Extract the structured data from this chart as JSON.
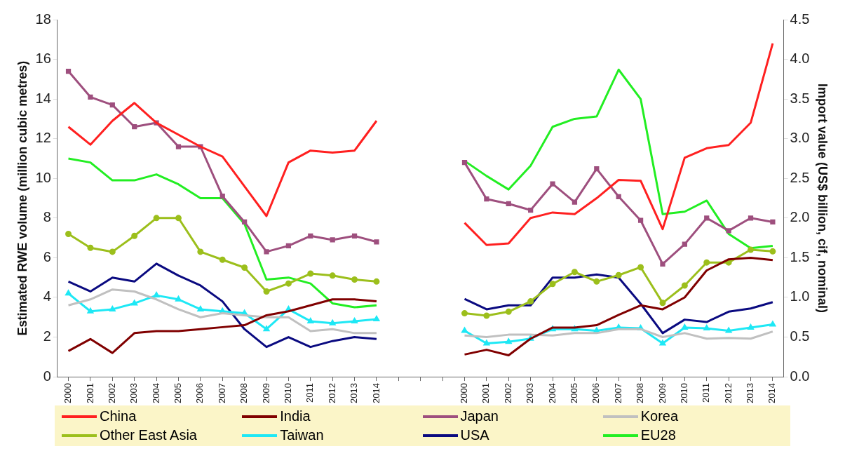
{
  "chart_data": {
    "type": "line",
    "ylabel": "Estimated RWE volume (million cubic metres)",
    "y2label": "Import value (US$ billion, cif, nominal)",
    "categories": [
      "2000",
      "2001",
      "2002",
      "2003",
      "2004",
      "2005",
      "2006",
      "2007",
      "2008",
      "2009",
      "2010",
      "2011",
      "2012",
      "2013",
      "2014",
      null,
      null,
      null,
      "2000",
      "2001",
      "2002",
      "2003",
      "2004",
      "2005",
      "2006",
      "2007",
      "2008",
      "2009",
      "2010",
      "2011",
      "2012",
      "2013",
      "2014"
    ],
    "ylim": [
      0,
      18
    ],
    "yticks": [
      0,
      2,
      4,
      6,
      8,
      10,
      12,
      14,
      16,
      18
    ],
    "y2lim": [
      0,
      4.5
    ],
    "y2ticks": [
      {
        "value": 0,
        "label": "0.0"
      },
      {
        "value": 0.5,
        "label": "0.5"
      },
      {
        "value": 1,
        "label": "1.0"
      },
      {
        "value": 1.5,
        "label": "1.5"
      },
      {
        "value": 2,
        "label": "2.0"
      },
      {
        "value": 2.5,
        "label": "2.5"
      },
      {
        "value": 3,
        "label": "3.0"
      },
      {
        "value": 3.5,
        "label": "3.5"
      },
      {
        "value": 4,
        "label": "4.0"
      },
      {
        "value": 4.5,
        "label": "4.5"
      }
    ],
    "grid": false,
    "legend": "bottom",
    "line_style": "solid",
    "series": [
      {
        "name": "China",
        "color": "#ff2020",
        "marker": "none",
        "values": [
          12.6,
          11.7,
          12.9,
          13.8,
          12.8,
          12.2,
          11.6,
          11.1,
          9.6,
          8.1,
          10.8,
          11.4,
          11.3,
          11.4,
          12.9,
          null,
          null,
          null,
          null,
          null,
          null,
          null,
          null,
          null,
          null,
          null,
          null,
          null,
          null,
          null,
          null,
          null,
          null
        ]
      },
      {
        "name": "India",
        "color": "#800000",
        "marker": "none",
        "values": [
          1.3,
          1.9,
          1.2,
          2.2,
          2.3,
          2.3,
          2.4,
          2.5,
          2.6,
          3.1,
          3.3,
          3.6,
          3.9,
          3.9,
          3.8,
          null,
          null,
          null,
          null,
          null,
          null,
          null,
          null,
          null,
          null,
          null,
          null,
          null,
          null,
          null,
          null,
          null,
          null
        ]
      },
      {
        "name": "Japan",
        "color": "#9e4f7e",
        "marker": "square",
        "values": [
          15.4,
          14.1,
          13.7,
          12.6,
          12.8,
          11.6,
          11.6,
          9.1,
          7.8,
          6.3,
          6.6,
          7.1,
          6.9,
          7.1,
          6.8,
          null,
          null,
          null,
          null,
          null,
          null,
          null,
          null,
          null,
          null,
          null,
          null,
          null,
          null,
          null,
          null,
          null,
          null
        ]
      },
      {
        "name": "Korea",
        "color": "#c0c0c0",
        "marker": "none",
        "values": [
          3.6,
          3.9,
          4.4,
          4.3,
          3.9,
          3.4,
          3.0,
          3.2,
          3.1,
          3.0,
          3.0,
          2.3,
          2.4,
          2.2,
          2.2,
          null,
          null,
          null,
          null,
          null,
          null,
          null,
          null,
          null,
          null,
          null,
          null,
          null,
          null,
          null,
          null,
          null,
          null
        ]
      },
      {
        "name": "Other East Asia",
        "color": "#9cbf1c",
        "marker": "circle",
        "values": [
          7.2,
          6.5,
          6.3,
          7.1,
          8.0,
          8.0,
          6.3,
          5.9,
          5.5,
          4.3,
          4.7,
          5.2,
          5.1,
          4.9,
          4.8,
          null,
          null,
          null,
          null,
          null,
          null,
          null,
          null,
          null,
          null,
          null,
          null,
          null,
          null,
          null,
          null,
          null,
          null
        ]
      },
      {
        "name": "Taiwan",
        "color": "#1ee8f5",
        "marker": "triangle",
        "values": [
          4.2,
          3.3,
          3.4,
          3.7,
          4.1,
          3.9,
          3.4,
          3.3,
          3.2,
          2.4,
          3.4,
          2.8,
          2.7,
          2.8,
          2.9,
          null,
          null,
          null,
          null,
          null,
          null,
          null,
          null,
          null,
          null,
          null,
          null,
          null,
          null,
          null,
          null,
          null,
          null
        ]
      },
      {
        "name": "USA",
        "color": "#0a0a80",
        "marker": "none",
        "values": [
          4.8,
          4.3,
          5.0,
          4.8,
          5.7,
          5.1,
          4.6,
          3.8,
          2.4,
          1.5,
          2.0,
          1.5,
          1.8,
          2.0,
          1.9,
          null,
          null,
          null,
          null,
          null,
          null,
          null,
          null,
          null,
          null,
          null,
          null,
          null,
          null,
          null,
          null,
          null,
          null
        ]
      },
      {
        "name": "EU28",
        "color": "#22ee22",
        "marker": "none",
        "values": [
          11.0,
          10.8,
          9.9,
          9.9,
          10.2,
          9.7,
          9.0,
          9.0,
          7.7,
          4.9,
          5.0,
          4.7,
          3.7,
          3.5,
          3.6,
          null,
          null,
          null,
          null,
          null,
          null,
          null,
          null,
          null,
          null,
          null,
          null,
          null,
          null,
          null,
          null,
          null,
          null
        ]
      },
      {
        "color": "#ff2020",
        "axis": "y2",
        "marker": "none",
        "values": [
          null,
          null,
          null,
          null,
          null,
          null,
          null,
          null,
          null,
          null,
          null,
          null,
          null,
          null,
          null,
          null,
          null,
          null,
          1.94,
          1.66,
          1.68,
          2.0,
          2.07,
          2.05,
          2.25,
          2.48,
          2.47,
          1.86,
          2.76,
          2.88,
          2.92,
          3.2,
          4.2
        ]
      },
      {
        "color": "#800000",
        "axis": "y2",
        "marker": "none",
        "values": [
          null,
          null,
          null,
          null,
          null,
          null,
          null,
          null,
          null,
          null,
          null,
          null,
          null,
          null,
          null,
          null,
          null,
          null,
          0.28,
          0.34,
          0.27,
          0.48,
          0.62,
          0.62,
          0.65,
          0.78,
          0.9,
          0.85,
          1.0,
          1.34,
          1.48,
          1.5,
          1.47
        ]
      },
      {
        "color": "#9e4f7e",
        "axis": "y2",
        "marker": "square",
        "values": [
          null,
          null,
          null,
          null,
          null,
          null,
          null,
          null,
          null,
          null,
          null,
          null,
          null,
          null,
          null,
          null,
          null,
          null,
          2.7,
          2.24,
          2.18,
          2.1,
          2.43,
          2.2,
          2.62,
          2.27,
          1.97,
          1.42,
          1.67,
          2.0,
          1.84,
          2.0,
          1.95
        ]
      },
      {
        "color": "#c0c0c0",
        "axis": "y2",
        "marker": "none",
        "values": [
          null,
          null,
          null,
          null,
          null,
          null,
          null,
          null,
          null,
          null,
          null,
          null,
          null,
          null,
          null,
          null,
          null,
          null,
          0.52,
          0.5,
          0.53,
          0.53,
          0.52,
          0.55,
          0.55,
          0.6,
          0.6,
          0.5,
          0.55,
          0.48,
          0.49,
          0.48,
          0.57
        ]
      },
      {
        "color": "#9cbf1c",
        "axis": "y2",
        "marker": "circle",
        "values": [
          null,
          null,
          null,
          null,
          null,
          null,
          null,
          null,
          null,
          null,
          null,
          null,
          null,
          null,
          null,
          null,
          null,
          null,
          0.8,
          0.77,
          0.82,
          0.95,
          1.17,
          1.32,
          1.2,
          1.28,
          1.38,
          0.93,
          1.15,
          1.44,
          1.44,
          1.6,
          1.58
        ]
      },
      {
        "color": "#1ee8f5",
        "axis": "y2",
        "marker": "triangle",
        "values": [
          null,
          null,
          null,
          null,
          null,
          null,
          null,
          null,
          null,
          null,
          null,
          null,
          null,
          null,
          null,
          null,
          null,
          null,
          0.58,
          0.42,
          0.44,
          0.48,
          0.6,
          0.6,
          0.58,
          0.62,
          0.61,
          0.42,
          0.62,
          0.61,
          0.58,
          0.62,
          0.66
        ]
      },
      {
        "color": "#0a0a80",
        "axis": "y2",
        "marker": "none",
        "values": [
          null,
          null,
          null,
          null,
          null,
          null,
          null,
          null,
          null,
          null,
          null,
          null,
          null,
          null,
          null,
          null,
          null,
          null,
          0.98,
          0.85,
          0.9,
          0.9,
          1.25,
          1.25,
          1.29,
          1.25,
          0.92,
          0.55,
          0.72,
          0.69,
          0.82,
          0.86,
          0.94
        ]
      },
      {
        "color": "#22ee22",
        "axis": "y2",
        "marker": "none",
        "values": [
          null,
          null,
          null,
          null,
          null,
          null,
          null,
          null,
          null,
          null,
          null,
          null,
          null,
          null,
          null,
          null,
          null,
          null,
          2.72,
          2.53,
          2.36,
          2.66,
          3.15,
          3.25,
          3.28,
          3.87,
          3.5,
          2.05,
          2.08,
          2.22,
          1.8,
          1.62,
          1.65
        ]
      }
    ]
  }
}
